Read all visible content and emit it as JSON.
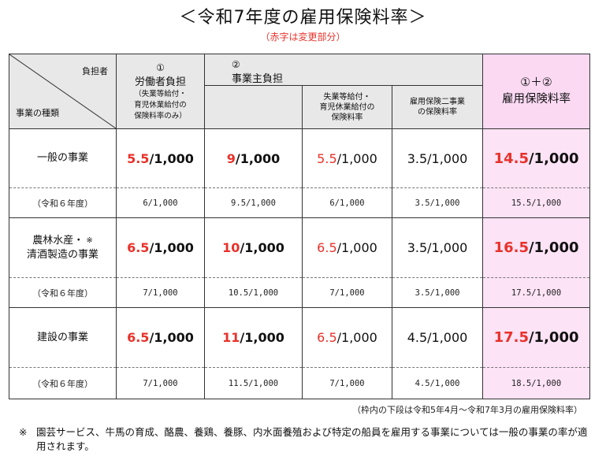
{
  "title": "＜令和7年度の雇用保険料率＞",
  "subtitle": "（赤字は変更部分）",
  "table": {
    "diag_top": "負担者",
    "diag_bottom": "事業の種類",
    "col1": {
      "num": "①",
      "label": "労働者負担",
      "note1": "（失業等給付・",
      "note2": "育児休業給付の",
      "note3": "保険料率のみ）"
    },
    "col2": {
      "num": "②",
      "label": "事業主負担"
    },
    "col2a": {
      "line1": "失業等給付・",
      "line2": "育児休業給付の",
      "line3": "保険料率"
    },
    "col2b": {
      "line1": "雇用保険二事業",
      "line2": "の保険料率"
    },
    "col3": {
      "num": "①＋②",
      "label": "雇用保険料率"
    },
    "denom": "/1,000",
    "rows": [
      {
        "label1": "一般の事業",
        "label2": "",
        "mark": "",
        "c1": "5.5",
        "c2": "9",
        "c3": "5.5",
        "c4": "3.5/1,000",
        "c5": "14.5",
        "prev_label": "（令和６年度）",
        "p1": "6/1,000",
        "p2": "9.5/1,000",
        "p3": "6/1,000",
        "p4": "3.5/1,000",
        "p5": "15.5/1,000"
      },
      {
        "label1": "農林水産・",
        "label2": "清酒製造の事業",
        "mark": "※",
        "c1": "6.5",
        "c2": "10",
        "c3": "6.5",
        "c4": "3.5/1,000",
        "c5": "16.5",
        "prev_label": "（令和６年度）",
        "p1": "7/1,000",
        "p2": "10.5/1,000",
        "p3": "7/1,000",
        "p4": "3.5/1,000",
        "p5": "17.5/1,000"
      },
      {
        "label1": "建設の事業",
        "label2": "",
        "mark": "",
        "c1": "6.5",
        "c2": "11",
        "c3": "6.5",
        "c4": "4.5/1,000",
        "c5": "17.5",
        "prev_label": "（令和６年度）",
        "p1": "7/1,000",
        "p2": "11.5/1,000",
        "p3": "7/1,000",
        "p4": "4.5/1,000",
        "p5": "18.5/1,000"
      }
    ]
  },
  "footnote_right": "（枠内の下段は令和5年4月～令和7年3月の雇用保険料率）",
  "note": {
    "mark": "※",
    "text": "園芸サービス、牛馬の育成、酪農、養鶏、養豚、内水面養殖および特定の船員を雇用する事業については一般の事業の率が適用されます。"
  },
  "colors": {
    "red": "#e8322a",
    "header_gray": "#e8e8e8",
    "pink_header": "#fbd9f3",
    "pink_cell": "#fde3f6"
  }
}
